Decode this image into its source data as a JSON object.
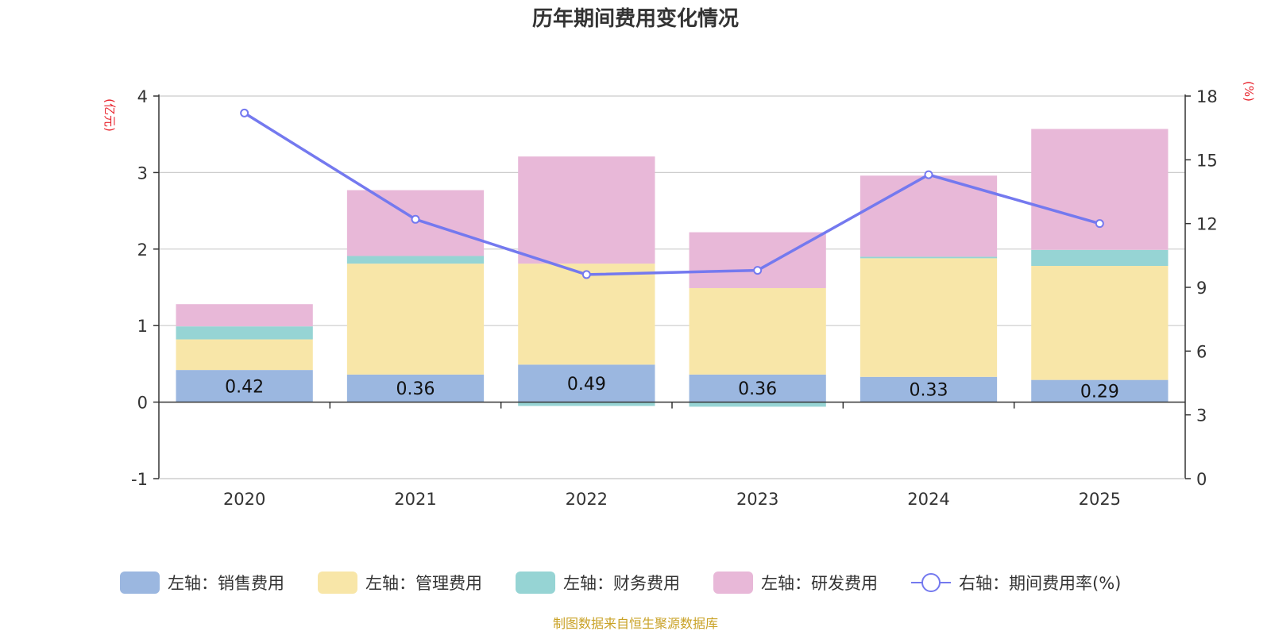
{
  "chart_data": {
    "type": "bar",
    "stacked": true,
    "title": "历年期间费用变化情况",
    "categories": [
      "2020",
      "2021",
      "2022",
      "2023",
      "2024",
      "2025"
    ],
    "left_axis": {
      "unit_label": "(亿元)",
      "ylim": [
        -1,
        4
      ],
      "ticks": [
        -1,
        0,
        1,
        2,
        3,
        4
      ]
    },
    "right_axis": {
      "unit_label": "(%)",
      "ylim": [
        0,
        18
      ],
      "ticks": [
        0,
        3,
        6,
        9,
        12,
        15,
        18
      ]
    },
    "series": [
      {
        "name": "左轴：销售费用",
        "axis": "left",
        "type": "bar",
        "color": "#9bb7e0",
        "values": [
          0.42,
          0.36,
          0.49,
          0.36,
          0.33,
          0.29
        ],
        "show_labels": true
      },
      {
        "name": "左轴：管理费用",
        "axis": "left",
        "type": "bar",
        "color": "#f8e6a8",
        "values": [
          0.4,
          1.45,
          1.32,
          1.13,
          1.55,
          1.49
        ],
        "show_labels": false
      },
      {
        "name": "左轴：财务费用",
        "axis": "left",
        "type": "bar",
        "color": "#96d4d4",
        "values": [
          0.17,
          0.1,
          -0.05,
          -0.06,
          0.02,
          0.21
        ],
        "show_labels": false
      },
      {
        "name": "左轴：研发费用",
        "axis": "left",
        "type": "bar",
        "color": "#e8b8d8",
        "values": [
          0.29,
          0.86,
          1.4,
          0.73,
          1.06,
          1.58
        ],
        "show_labels": false
      },
      {
        "name": "右轴：期间费用率(%)",
        "axis": "right",
        "type": "line",
        "color": "#7479ef",
        "values": [
          17.2,
          12.2,
          9.6,
          9.8,
          14.3,
          12.0
        ]
      }
    ],
    "source": "制图数据来自恒生聚源数据库"
  }
}
